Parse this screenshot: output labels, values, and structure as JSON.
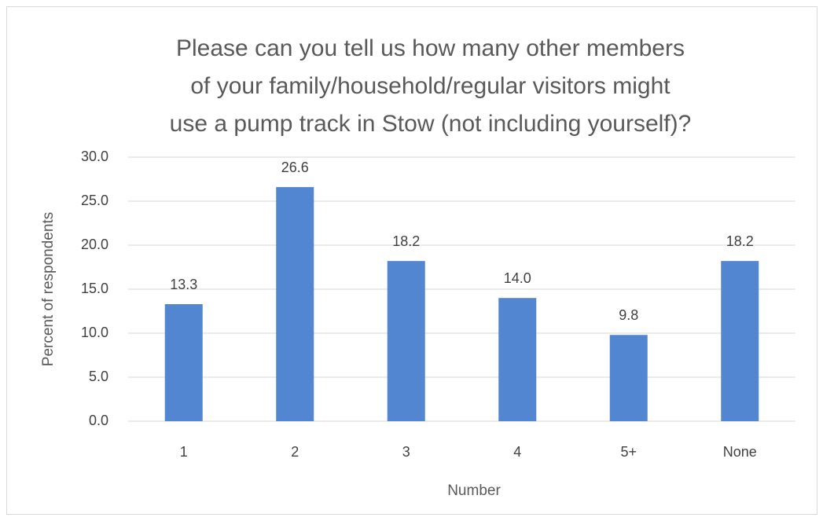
{
  "chart_data": {
    "type": "bar",
    "title": "Please can you tell us how many other members\nof your family/household/regular visitors might\nuse a pump track in Stow (not including yourself)?",
    "x_label": "Number",
    "y_label": "Percent of respondents",
    "categories": [
      "1",
      "2",
      "3",
      "4",
      "5+",
      "None"
    ],
    "values": [
      13.3,
      26.6,
      18.2,
      14.0,
      9.8,
      18.2
    ],
    "value_labels": [
      "13.3",
      "26.6",
      "18.2",
      "14.0",
      "9.8",
      "18.2"
    ],
    "color": "#5386d1",
    "ylim": [
      0,
      30
    ],
    "yticks": [
      {
        "value": 0,
        "label": "0.0"
      },
      {
        "value": 5,
        "label": "5.0"
      },
      {
        "value": 10,
        "label": "10.0"
      },
      {
        "value": 15,
        "label": "15.0"
      },
      {
        "value": 20,
        "label": "20.0"
      },
      {
        "value": 25,
        "label": "25.0"
      },
      {
        "value": 30,
        "label": "30.0"
      }
    ],
    "grid": true
  }
}
